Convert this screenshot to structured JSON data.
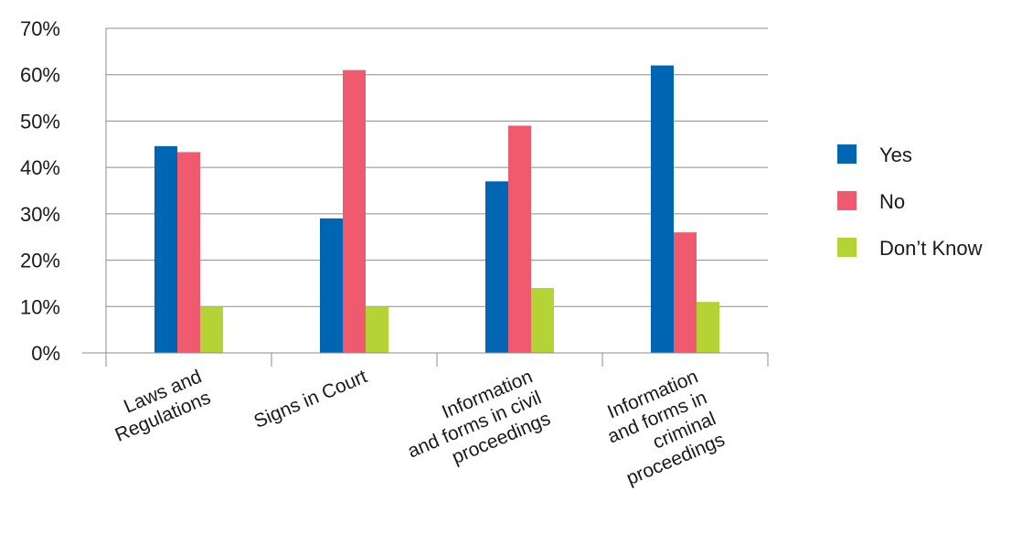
{
  "chart_data": {
    "type": "bar",
    "categories": [
      [
        "Laws and",
        "Regulations"
      ],
      [
        "Signs in Court"
      ],
      [
        "Information",
        "and forms in civil",
        "proceedings"
      ],
      [
        "Information",
        "and forms in",
        "criminal",
        "proceedings"
      ]
    ],
    "series": [
      {
        "name": "Yes",
        "color": "#0066b3",
        "values": [
          44.6,
          29,
          37,
          62
        ]
      },
      {
        "name": "No",
        "color": "#f05a6e",
        "values": [
          43.3,
          61,
          49,
          26
        ]
      },
      {
        "name": "Don’t Know",
        "color": "#b5d334",
        "values": [
          10,
          10,
          14,
          11
        ]
      }
    ],
    "yticks": [
      "0%",
      "10%",
      "20%",
      "30%",
      "40%",
      "50%",
      "60%",
      "70%"
    ],
    "ylim": [
      0,
      70
    ],
    "grid": true,
    "legend": "right"
  }
}
